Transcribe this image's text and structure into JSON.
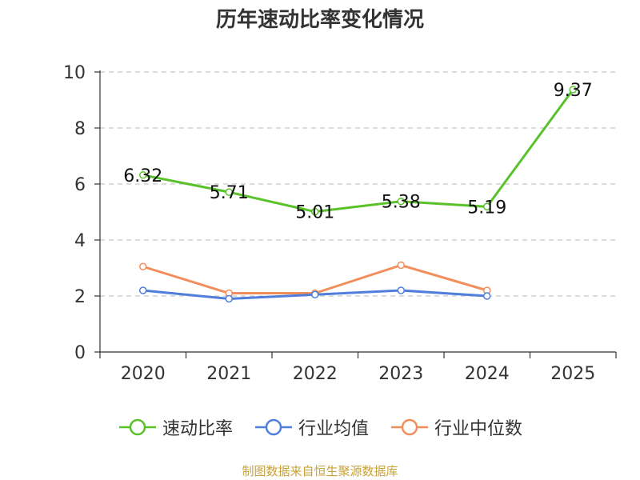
{
  "chart_data": {
    "type": "line",
    "title": "历年速动比率变化情况",
    "categories": [
      "2020",
      "2021",
      "2022",
      "2023",
      "2024",
      "2025"
    ],
    "y_ticks": [
      0,
      2,
      4,
      6,
      8,
      10
    ],
    "ylim": [
      0,
      10
    ],
    "grid": "horizontal dashed",
    "legend_position": "bottom",
    "series": [
      {
        "name": "速动比率",
        "color": "#59c22a",
        "values": [
          6.32,
          5.71,
          5.01,
          5.38,
          5.19,
          9.37
        ],
        "labels": [
          "6.32",
          "5.71",
          "5.01",
          "5.38",
          "5.19",
          "9.37"
        ]
      },
      {
        "name": "行业均值",
        "color": "#4f7fdb",
        "values": [
          2.2,
          1.9,
          2.05,
          2.2,
          2.0,
          null
        ]
      },
      {
        "name": "行业中位数",
        "color": "#f28e5b",
        "values": [
          3.05,
          2.1,
          2.1,
          3.1,
          2.2,
          null
        ]
      }
    ],
    "source": "制图数据来自恒生聚源数据库"
  }
}
